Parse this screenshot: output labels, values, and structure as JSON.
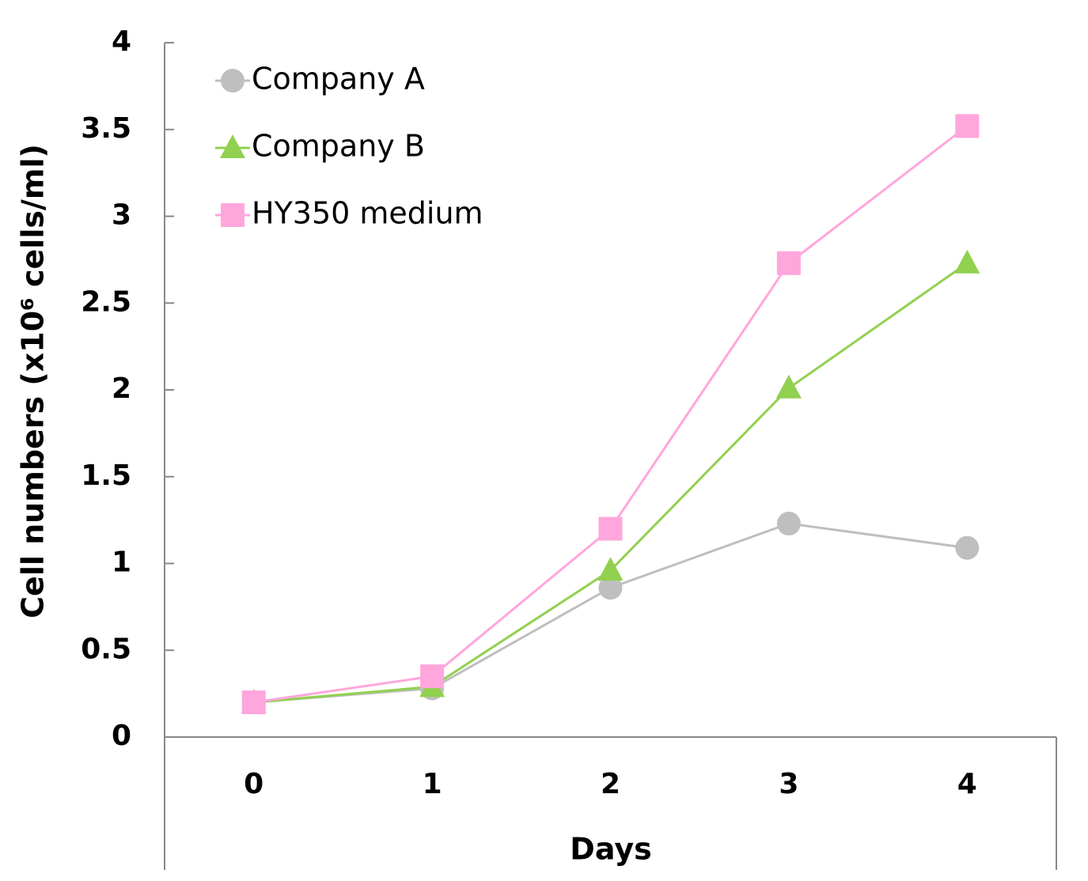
{
  "chart_data": {
    "type": "line",
    "x_label": "Days",
    "y_label": "Cell numbers (x10⁶ cells/ml)",
    "categories": [
      "0",
      "1",
      "2",
      "3",
      "4"
    ],
    "series": [
      {
        "name": "Company A",
        "color": "#bfbfbf",
        "marker": "circle",
        "values": [
          0.2,
          0.28,
          0.86,
          1.23,
          1.09
        ]
      },
      {
        "name": "Company B",
        "color": "#92d050",
        "marker": "triangle",
        "values": [
          0.2,
          0.29,
          0.96,
          2.01,
          2.73
        ]
      },
      {
        "name": "HY350 medium",
        "color": "#ffa6dc",
        "marker": "square",
        "values": [
          0.2,
          0.35,
          1.2,
          2.73,
          3.52
        ]
      }
    ],
    "ylim": [
      0,
      4
    ],
    "yticks": [
      0,
      0.5,
      1,
      1.5,
      2,
      2.5,
      3,
      3.5,
      4
    ],
    "legend": "upper-left"
  }
}
